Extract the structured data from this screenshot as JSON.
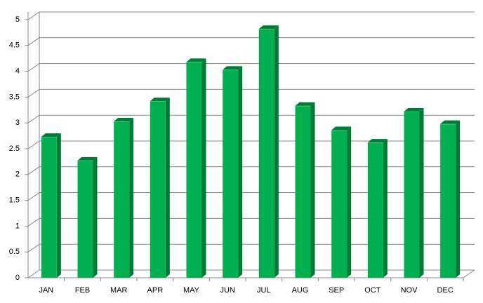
{
  "chart_data": {
    "type": "bar",
    "categories": [
      "JAN",
      "FEB",
      "MAR",
      "APR",
      "MAY",
      "JUN",
      "JUL",
      "AUG",
      "SEP",
      "OCT",
      "NOV",
      "DEC"
    ],
    "values": [
      2.73,
      2.27,
      3.03,
      3.42,
      4.18,
      4.03,
      4.82,
      3.33,
      2.86,
      2.62,
      3.22,
      2.98
    ],
    "color": "#00b050",
    "ylim": [
      0,
      5
    ],
    "yticks": [
      0,
      0.5,
      1,
      1.5,
      2,
      2.5,
      3,
      3.5,
      4,
      4.5,
      5
    ],
    "grid": true
  }
}
